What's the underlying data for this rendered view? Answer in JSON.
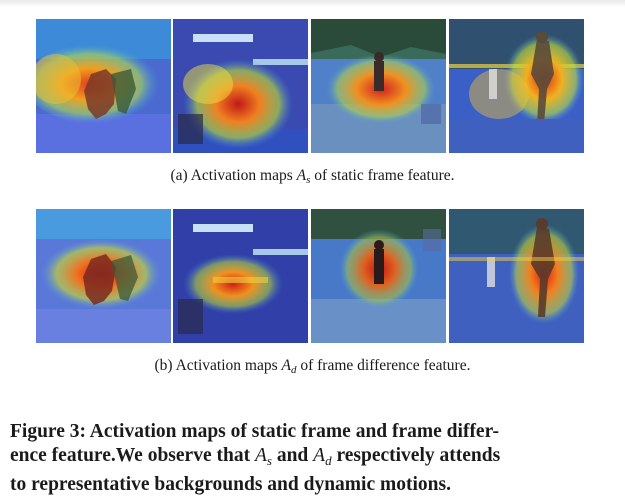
{
  "subcaptions": {
    "a": {
      "prefix": "(a) Activation maps ",
      "symbol": "A",
      "subscript": "s",
      "suffix": " of static frame feature."
    },
    "b": {
      "prefix": "(b) Activation maps ",
      "symbol": "A",
      "subscript": "d",
      "suffix": " of frame difference feature."
    }
  },
  "figure_caption": {
    "line1": "Figure 3: Activation maps of static frame and frame differ-",
    "line2_part1": "ence feature.We observe that ",
    "symbol1": "A",
    "sub1": "s",
    "line2_part2": " and ",
    "symbol2": "A",
    "sub2": "d",
    "line2_part3": " respectively attends",
    "line3": "to representative backgrounds and dynamic motions."
  },
  "images": {
    "row_a": [
      "figure-skating-pair",
      "indoor-gym-scene",
      "tennis-court-player",
      "baseball-pitcher"
    ],
    "row_b": [
      "figure-skating-pair",
      "indoor-gym-scene",
      "tennis-court-player",
      "baseball-pitcher"
    ]
  }
}
